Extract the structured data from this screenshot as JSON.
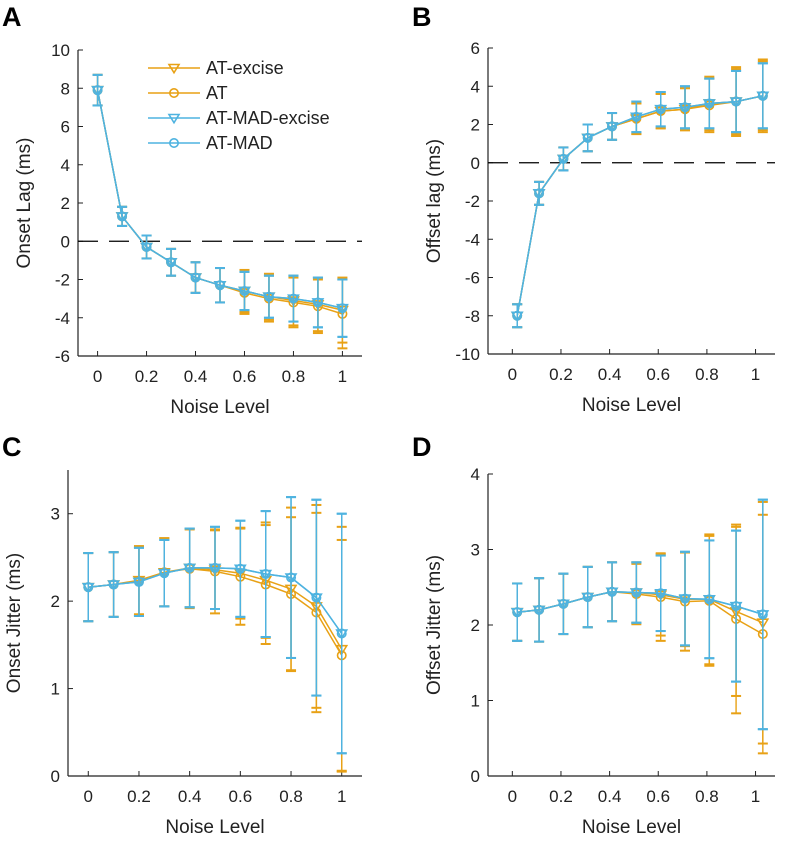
{
  "colors": {
    "at": "#E8A115",
    "mad": "#4EB3E0",
    "axis": "#222222",
    "zero_line": "#000000"
  },
  "legend": {
    "panel": "A",
    "entries": [
      {
        "label": "AT-excise",
        "series": "at_excise"
      },
      {
        "label": "AT",
        "series": "at"
      },
      {
        "label": "AT-MAD-excise",
        "series": "mad_excise"
      },
      {
        "label": "AT-MAD",
        "series": "mad"
      }
    ]
  },
  "chart_data": [
    {
      "panel": "A",
      "type": "line",
      "title": "",
      "xlabel": "Noise Level",
      "ylabel": "Onset Lag (ms)",
      "xlim": [
        -0.08,
        1.08
      ],
      "ylim": [
        -6,
        10
      ],
      "xticks": [
        0,
        0.2,
        0.4,
        0.6,
        0.8,
        1
      ],
      "xtick_labels": [
        "0",
        "0.2",
        "0.4",
        "0.6",
        "0.8",
        "1"
      ],
      "yticks": [
        -6,
        -4,
        -2,
        0,
        2,
        4,
        6,
        8,
        10
      ],
      "ytick_labels": [
        "-6",
        "-4",
        "-2",
        "0",
        "2",
        "4",
        "6",
        "8",
        "10"
      ],
      "zero_line": true,
      "x": [
        0,
        0.1,
        0.2,
        0.3,
        0.4,
        0.5,
        0.6,
        0.7,
        0.8,
        0.9,
        1.0
      ],
      "series": [
        {
          "name": "AT-excise",
          "key": "at_excise",
          "color": "#E8A115",
          "marker": "triangle-down",
          "values": [
            7.9,
            1.3,
            -0.3,
            -1.1,
            -1.9,
            -2.3,
            -2.6,
            -2.9,
            -3.1,
            -3.3,
            -3.6
          ],
          "errors": [
            0.8,
            0.5,
            0.6,
            0.7,
            0.8,
            0.9,
            1.1,
            1.2,
            1.3,
            1.4,
            1.7
          ]
        },
        {
          "name": "AT",
          "key": "at",
          "color": "#E8A115",
          "marker": "circle",
          "values": [
            7.9,
            1.3,
            -0.3,
            -1.1,
            -1.9,
            -2.3,
            -2.7,
            -3.0,
            -3.2,
            -3.4,
            -3.8
          ],
          "errors": [
            0.8,
            0.5,
            0.6,
            0.7,
            0.8,
            0.9,
            1.1,
            1.2,
            1.3,
            1.4,
            1.8
          ]
        },
        {
          "name": "AT-MAD-excise",
          "key": "mad_excise",
          "color": "#4EB3E0",
          "marker": "triangle-down",
          "values": [
            7.9,
            1.3,
            -0.3,
            -1.1,
            -1.9,
            -2.3,
            -2.6,
            -2.9,
            -3.0,
            -3.2,
            -3.5
          ],
          "errors": [
            0.8,
            0.5,
            0.6,
            0.7,
            0.8,
            0.9,
            1.0,
            1.1,
            1.2,
            1.3,
            1.5
          ]
        },
        {
          "name": "AT-MAD",
          "key": "mad",
          "color": "#4EB3E0",
          "marker": "circle",
          "values": [
            7.9,
            1.3,
            -0.3,
            -1.1,
            -1.9,
            -2.3,
            -2.6,
            -2.9,
            -3.0,
            -3.2,
            -3.5
          ],
          "errors": [
            0.8,
            0.5,
            0.6,
            0.7,
            0.8,
            0.9,
            1.0,
            1.1,
            1.2,
            1.3,
            1.5
          ]
        }
      ]
    },
    {
      "panel": "B",
      "type": "line",
      "title": "",
      "xlabel": "Noise Level",
      "ylabel": "Offset lag (ms)",
      "xlim": [
        -0.1,
        1.08
      ],
      "ylim": [
        -10,
        6
      ],
      "xticks": [
        0,
        0.2,
        0.4,
        0.6,
        0.8,
        1
      ],
      "xtick_labels": [
        "0",
        "0.2",
        "0.4",
        "0.6",
        "0.8",
        "1"
      ],
      "yticks": [
        -10,
        -8,
        -6,
        -4,
        -2,
        0,
        2,
        4,
        6
      ],
      "ytick_labels": [
        "-10",
        "-8",
        "-6",
        "-4",
        "-2",
        "0",
        "2",
        "4",
        "6"
      ],
      "zero_line": true,
      "x": [
        0.02,
        0.11,
        0.21,
        0.31,
        0.41,
        0.51,
        0.61,
        0.71,
        0.81,
        0.92,
        1.03
      ],
      "series": [
        {
          "name": "AT-excise",
          "key": "at_excise",
          "color": "#E8A115",
          "marker": "triangle-down",
          "values": [
            -8.0,
            -1.6,
            0.2,
            1.3,
            1.9,
            2.3,
            2.7,
            2.8,
            3.1,
            3.2,
            3.5
          ],
          "errors": [
            0.6,
            0.6,
            0.6,
            0.7,
            0.7,
            0.8,
            0.9,
            1.1,
            1.4,
            1.7,
            1.8
          ]
        },
        {
          "name": "AT",
          "key": "at",
          "color": "#E8A115",
          "marker": "circle",
          "values": [
            -8.0,
            -1.6,
            0.2,
            1.3,
            1.9,
            2.3,
            2.7,
            2.8,
            3.0,
            3.2,
            3.5
          ],
          "errors": [
            0.6,
            0.6,
            0.6,
            0.7,
            0.7,
            0.8,
            0.9,
            1.1,
            1.4,
            1.8,
            1.9
          ]
        },
        {
          "name": "AT-MAD-excise",
          "key": "mad_excise",
          "color": "#4EB3E0",
          "marker": "triangle-down",
          "values": [
            -8.0,
            -1.6,
            0.2,
            1.3,
            1.9,
            2.4,
            2.8,
            2.9,
            3.1,
            3.2,
            3.5
          ],
          "errors": [
            0.6,
            0.6,
            0.6,
            0.7,
            0.7,
            0.8,
            0.9,
            1.1,
            1.3,
            1.6,
            1.7
          ]
        },
        {
          "name": "AT-MAD",
          "key": "mad",
          "color": "#4EB3E0",
          "marker": "circle",
          "values": [
            -8.0,
            -1.6,
            0.2,
            1.3,
            1.9,
            2.4,
            2.8,
            2.9,
            3.1,
            3.2,
            3.5
          ],
          "errors": [
            0.6,
            0.6,
            0.6,
            0.7,
            0.7,
            0.8,
            0.9,
            1.1,
            1.3,
            1.6,
            1.7
          ]
        }
      ]
    },
    {
      "panel": "C",
      "type": "line",
      "title": "",
      "xlabel": "Noise Level",
      "ylabel": "Onset Jitter (ms)",
      "xlim": [
        -0.08,
        1.08
      ],
      "ylim": [
        0,
        3.5
      ],
      "xticks": [
        0,
        0.2,
        0.4,
        0.6,
        0.8,
        1
      ],
      "xtick_labels": [
        "0",
        "0.2",
        "0.4",
        "0.6",
        "0.8",
        "1"
      ],
      "yticks": [
        0,
        1,
        2,
        3
      ],
      "ytick_labels": [
        "0",
        "1",
        "2",
        "3"
      ],
      "zero_line": false,
      "x": [
        0,
        0.1,
        0.2,
        0.3,
        0.4,
        0.5,
        0.6,
        0.7,
        0.8,
        0.9,
        1.0
      ],
      "series": [
        {
          "name": "AT-excise",
          "key": "at_excise",
          "color": "#E8A115",
          "marker": "triangle-down",
          "values": [
            2.16,
            2.19,
            2.24,
            2.33,
            2.38,
            2.36,
            2.32,
            2.24,
            2.14,
            1.94,
            1.45
          ],
          "errors": [
            0.39,
            0.37,
            0.39,
            0.39,
            0.45,
            0.45,
            0.52,
            0.66,
            0.93,
            1.16,
            1.4
          ]
        },
        {
          "name": "AT",
          "key": "at",
          "color": "#E8A115",
          "marker": "circle",
          "values": [
            2.16,
            2.19,
            2.23,
            2.33,
            2.37,
            2.34,
            2.28,
            2.19,
            2.08,
            1.87,
            1.38
          ],
          "errors": [
            0.39,
            0.37,
            0.39,
            0.39,
            0.45,
            0.48,
            0.55,
            0.68,
            0.88,
            1.14,
            1.32
          ]
        },
        {
          "name": "AT-MAD-excise",
          "key": "mad_excise",
          "color": "#4EB3E0",
          "marker": "triangle-down",
          "values": [
            2.16,
            2.19,
            2.22,
            2.32,
            2.38,
            2.38,
            2.37,
            2.31,
            2.27,
            2.04,
            1.63
          ],
          "errors": [
            0.39,
            0.37,
            0.39,
            0.38,
            0.45,
            0.47,
            0.55,
            0.72,
            0.92,
            1.12,
            1.37
          ]
        },
        {
          "name": "AT-MAD",
          "key": "mad",
          "color": "#4EB3E0",
          "marker": "circle",
          "values": [
            2.16,
            2.19,
            2.22,
            2.32,
            2.38,
            2.38,
            2.37,
            2.31,
            2.27,
            2.04,
            1.63
          ],
          "errors": [
            0.39,
            0.37,
            0.39,
            0.38,
            0.45,
            0.47,
            0.55,
            0.72,
            0.92,
            1.12,
            1.37
          ]
        }
      ]
    },
    {
      "panel": "D",
      "type": "line",
      "title": "",
      "xlabel": "Noise Level",
      "ylabel": "Offset Jitter (ms)",
      "xlim": [
        -0.1,
        1.08
      ],
      "ylim": [
        0,
        4
      ],
      "xticks": [
        0,
        0.2,
        0.4,
        0.6,
        0.8,
        1
      ],
      "xtick_labels": [
        "0",
        "0.2",
        "0.4",
        "0.6",
        "0.8",
        "1"
      ],
      "yticks": [
        0,
        1,
        2,
        3,
        4
      ],
      "ytick_labels": [
        "0",
        "1",
        "2",
        "3",
        "4"
      ],
      "zero_line": false,
      "x": [
        0.02,
        0.11,
        0.21,
        0.31,
        0.41,
        0.51,
        0.61,
        0.71,
        0.81,
        0.92,
        1.03
      ],
      "series": [
        {
          "name": "AT-excise",
          "key": "at_excise",
          "color": "#E8A115",
          "marker": "triangle-down",
          "values": [
            2.17,
            2.2,
            2.28,
            2.37,
            2.44,
            2.43,
            2.4,
            2.34,
            2.34,
            2.18,
            2.03
          ],
          "errors": [
            0.38,
            0.42,
            0.4,
            0.4,
            0.39,
            0.4,
            0.54,
            0.62,
            0.86,
            1.12,
            1.6
          ]
        },
        {
          "name": "AT",
          "key": "at",
          "color": "#E8A115",
          "marker": "circle",
          "values": [
            2.17,
            2.2,
            2.28,
            2.37,
            2.44,
            2.41,
            2.37,
            2.31,
            2.32,
            2.08,
            1.88
          ],
          "errors": [
            0.38,
            0.42,
            0.4,
            0.4,
            0.39,
            0.4,
            0.58,
            0.65,
            0.86,
            1.25,
            1.58
          ]
        },
        {
          "name": "AT-MAD-excise",
          "key": "mad_excise",
          "color": "#4EB3E0",
          "marker": "triangle-down",
          "values": [
            2.17,
            2.2,
            2.28,
            2.37,
            2.44,
            2.43,
            2.42,
            2.35,
            2.34,
            2.25,
            2.14
          ],
          "errors": [
            0.38,
            0.42,
            0.4,
            0.4,
            0.39,
            0.4,
            0.5,
            0.62,
            0.78,
            1.0,
            1.52
          ]
        },
        {
          "name": "AT-MAD",
          "key": "mad",
          "color": "#4EB3E0",
          "marker": "circle",
          "values": [
            2.17,
            2.2,
            2.28,
            2.37,
            2.44,
            2.43,
            2.42,
            2.35,
            2.34,
            2.25,
            2.14
          ],
          "errors": [
            0.38,
            0.42,
            0.4,
            0.4,
            0.39,
            0.4,
            0.5,
            0.62,
            0.78,
            1.0,
            1.52
          ]
        }
      ]
    }
  ]
}
